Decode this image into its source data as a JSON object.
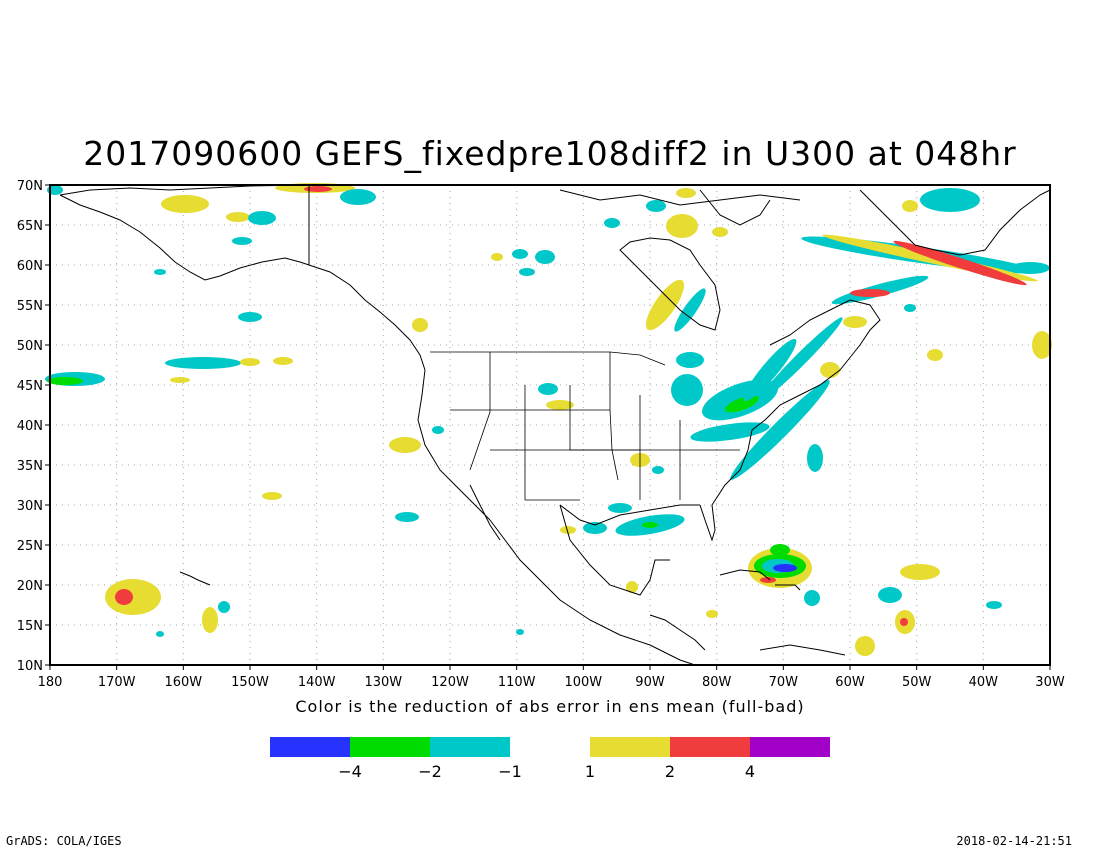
{
  "title": "2017090600 GEFS_fixedpre108diff2 in U300 at 048hr",
  "caption": "Color is the reduction of abs error in ens mean (full-bad)",
  "footer_left": "GrADS: COLA/IGES",
  "footer_right": "2018-02-14-21:51",
  "axes": {
    "lat_labels": [
      "70N",
      "65N",
      "60N",
      "55N",
      "50N",
      "45N",
      "40N",
      "35N",
      "30N",
      "25N",
      "20N",
      "15N",
      "10N"
    ],
    "lon_labels": [
      "180",
      "170W",
      "160W",
      "150W",
      "140W",
      "130W",
      "120W",
      "110W",
      "100W",
      "90W",
      "80W",
      "70W",
      "60W",
      "50W",
      "40W",
      "30W"
    ]
  },
  "colorbar": {
    "colors": [
      "#2832ff",
      "#00dc00",
      "#00c8c8",
      "#e6dc32",
      "#f03c3c",
      "#a000c8"
    ],
    "labels": [
      "−4",
      "−2",
      "−1",
      "1",
      "2",
      "4"
    ]
  }
}
